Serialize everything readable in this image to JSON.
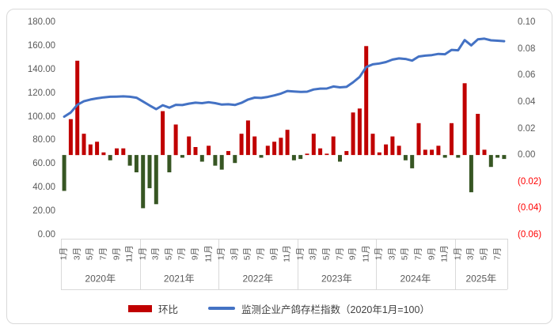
{
  "chart_data": {
    "type": "combo-bar-line",
    "title": "",
    "months_total": 68,
    "x_axis": {
      "years": [
        {
          "label": "2020年",
          "n_months": 12,
          "month_labels": [
            "1月",
            "3月",
            "5月",
            "7月",
            "9月",
            "11月"
          ]
        },
        {
          "label": "2021年",
          "n_months": 12,
          "month_labels": [
            "1月",
            "3月",
            "5月",
            "7月",
            "9月",
            "11月"
          ]
        },
        {
          "label": "2022年",
          "n_months": 12,
          "month_labels": [
            "1月",
            "3月",
            "5月",
            "7月",
            "9月",
            "11月"
          ]
        },
        {
          "label": "2023年",
          "n_months": 12,
          "month_labels": [
            "1月",
            "3月",
            "5月",
            "7月",
            "9月",
            "11月"
          ]
        },
        {
          "label": "2024年",
          "n_months": 12,
          "month_labels": [
            "1月",
            "3月",
            "5月",
            "7月",
            "9月",
            "11月"
          ]
        },
        {
          "label": "2025年",
          "n_months": 8,
          "month_labels": [
            "1月",
            "3月",
            "5月",
            "7月"
          ]
        }
      ]
    },
    "left_axis": {
      "min": 0,
      "max": 180,
      "step": 20,
      "tick_labels": [
        "180.00",
        "160.00",
        "140.00",
        "120.00",
        "100.00",
        "80.00",
        "60.00",
        "40.00",
        "20.00",
        "0.00"
      ],
      "color": "#595959"
    },
    "right_axis": {
      "min": -0.06,
      "max": 0.1,
      "step": 0.02,
      "tick_labels": [
        "0.10",
        "0.08",
        "0.06",
        "0.04",
        "0.02",
        "0.00",
        "(0.02)",
        "(0.04)",
        "(0.06)"
      ],
      "color": "#595959",
      "negative_color": "#ff0000"
    },
    "series": [
      {
        "name": "环比",
        "type": "bar",
        "axis": "right",
        "positive_color": "#c00000",
        "negative_color": "#375623",
        "values": [
          -0.027,
          0.027,
          0.071,
          0.016,
          0.008,
          0.01,
          0.002,
          -0.004,
          0.005,
          0.005,
          -0.008,
          -0.013,
          -0.04,
          -0.025,
          -0.037,
          0.033,
          -0.013,
          0.023,
          -0.002,
          0.014,
          0.006,
          -0.005,
          0.007,
          -0.008,
          -0.011,
          0.003,
          -0.006,
          0.016,
          0.026,
          0.014,
          -0.002,
          0.007,
          0.01,
          0.013,
          0.019,
          -0.004,
          -0.003,
          0.001,
          0.016,
          0.005,
          0.001,
          0.014,
          -0.005,
          0.003,
          0.032,
          0.035,
          0.082,
          0.016,
          0.002,
          0.008,
          0.014,
          0.007,
          -0.004,
          -0.01,
          0.024,
          0.004,
          0.004,
          0.007,
          -0.002,
          0.024,
          -0.002,
          0.054,
          -0.028,
          0.031,
          0.004,
          -0.009,
          -0.002,
          -0.003
        ]
      },
      {
        "name": "监测企业产鸽存栏指数（2020年1月=100）",
        "type": "line",
        "axis": "left",
        "color": "#4472c4",
        "values": [
          100.0,
          103.5,
          110.0,
          113.0,
          114.5,
          115.5,
          116.3,
          116.8,
          117.0,
          117.2,
          116.8,
          116.0,
          112.8,
          109.5,
          106.3,
          109.7,
          107.6,
          110.0,
          109.8,
          111.0,
          111.8,
          111.4,
          112.2,
          111.4,
          110.2,
          110.5,
          109.9,
          111.7,
          114.5,
          116.1,
          115.8,
          116.7,
          118.0,
          119.5,
          121.7,
          121.3,
          120.9,
          121.1,
          123.0,
          123.7,
          123.8,
          125.5,
          124.8,
          125.2,
          129.1,
          133.6,
          142.0,
          144.3,
          145.0,
          146.2,
          148.3,
          149.3,
          148.8,
          147.4,
          150.9,
          151.6,
          152.1,
          153.1,
          152.8,
          156.5,
          156.2,
          164.8,
          160.3,
          165.4,
          166.0,
          164.6,
          164.3,
          163.9
        ]
      }
    ]
  },
  "legend": {
    "items": [
      {
        "label": "环比",
        "swatch": "bar",
        "color": "#c00000"
      },
      {
        "label": "监测企业产鸽存栏指数（2020年1月=100）",
        "swatch": "line",
        "color": "#4472c4"
      }
    ]
  },
  "frame_border_color": "#d9d9d9"
}
